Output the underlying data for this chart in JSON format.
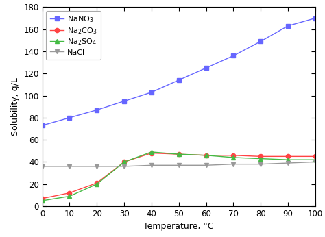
{
  "temperature": [
    0,
    10,
    20,
    30,
    40,
    50,
    60,
    70,
    80,
    90,
    100
  ],
  "NaNO3": [
    73,
    80,
    87,
    95,
    103,
    114,
    125,
    136,
    149,
    163,
    170
  ],
  "Na2CO3": [
    7,
    12,
    21,
    40,
    48,
    47,
    46,
    46,
    45,
    45,
    45
  ],
  "Na2SO4": [
    5,
    9,
    20,
    40,
    49,
    47,
    46,
    44,
    43,
    42,
    42
  ],
  "NaCl": [
    36,
    36,
    36,
    36,
    37,
    37,
    37,
    38,
    38,
    39,
    40
  ],
  "NaNO3_color": "#6666ff",
  "Na2CO3_color": "#ff4444",
  "Na2SO4_color": "#44bb44",
  "NaCl_color": "#999999",
  "xlabel": "Temperature, °C",
  "ylabel": "Solubility, g/L",
  "xlim": [
    0,
    100
  ],
  "ylim": [
    0,
    180
  ],
  "yticks": [
    0,
    20,
    40,
    60,
    80,
    100,
    120,
    140,
    160,
    180
  ],
  "xticks": [
    0,
    10,
    20,
    30,
    40,
    50,
    60,
    70,
    80,
    90,
    100
  ],
  "figwidth": 4.74,
  "figheight": 3.46,
  "dpi": 100,
  "legend_fontsize": 8,
  "axis_label_fontsize": 9,
  "tick_fontsize": 8.5,
  "linewidth": 1.0,
  "markersize_sq": 4.5,
  "markersize_circ": 4.5,
  "markersize_tri": 5.0
}
